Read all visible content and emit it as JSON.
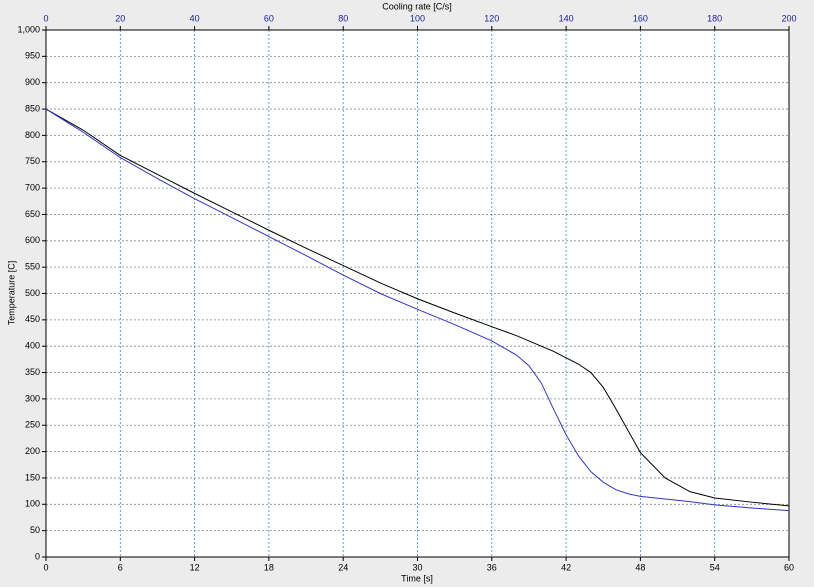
{
  "chart_data": {
    "type": "line",
    "xlabel": "Time [s]",
    "ylabel": "Temperature [C]",
    "x2label": "Cooling rate [C/s]",
    "x": [
      0,
      3,
      6,
      9,
      12,
      15,
      18,
      21,
      24,
      27,
      30,
      33,
      36,
      38,
      39,
      40,
      41,
      42,
      43,
      44,
      45,
      46,
      47,
      48,
      50,
      52,
      54,
      57,
      60
    ],
    "series": [
      {
        "color": "#000000",
        "values": [
          850,
          810,
          762,
          726,
          690,
          655,
          620,
          586,
          553,
          520,
          490,
          463,
          437,
          420,
          410,
          400,
          390,
          378,
          366,
          350,
          322,
          282,
          240,
          198,
          150,
          124,
          112,
          104,
          97
        ]
      },
      {
        "color": "#3333cc",
        "values": [
          850,
          806,
          758,
          718,
          680,
          644,
          608,
          572,
          535,
          500,
          470,
          441,
          410,
          383,
          363,
          330,
          280,
          232,
          192,
          162,
          142,
          128,
          120,
          115,
          110,
          105,
          99,
          93,
          88
        ]
      }
    ],
    "xlim": [
      0,
      60
    ],
    "xticks": [
      0,
      6,
      12,
      18,
      24,
      30,
      36,
      42,
      48,
      54,
      60
    ],
    "x2lim": [
      0,
      200
    ],
    "x2ticks": [
      0,
      20,
      40,
      60,
      80,
      100,
      120,
      140,
      160,
      180,
      200
    ],
    "x2color": "#1a1aa6",
    "ylim": [
      0,
      1000
    ],
    "yticks": [
      0,
      50,
      100,
      150,
      200,
      250,
      300,
      350,
      400,
      450,
      500,
      550,
      600,
      650,
      700,
      750,
      800,
      850,
      900,
      950,
      {
        "value": 1000,
        "label": "1,000"
      }
    ],
    "grid": true
  }
}
